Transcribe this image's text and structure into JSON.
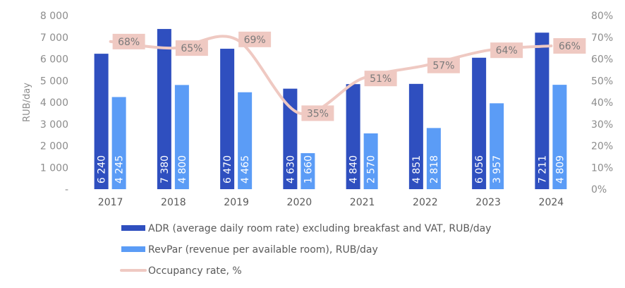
{
  "chart_data": {
    "type": "bar",
    "categories": [
      "2017",
      "2018",
      "2019",
      "2020",
      "2021",
      "2022",
      "2023",
      "2024"
    ],
    "series": [
      {
        "name": "ADR (average daily room rate) excluding breakfast and VAT, RUB/day",
        "values": [
          6240,
          7380,
          6470,
          4630,
          4840,
          4851,
          6056,
          7211
        ],
        "labels": [
          "6 240",
          "7 380",
          "6 470",
          "4 630",
          "4 840",
          "4 851",
          "6 056",
          "7 211"
        ],
        "color": "#2f4fbf",
        "axis": "left"
      },
      {
        "name": "RevPar (revenue per available room), RUB/day",
        "values": [
          4245,
          4800,
          4465,
          1660,
          2570,
          2818,
          3957,
          4809
        ],
        "labels": [
          "4 245",
          "4 800",
          "4 465",
          "1 660",
          "2 570",
          "2 818",
          "3 957",
          "4 809"
        ],
        "color": "#5b9cf6",
        "axis": "left"
      },
      {
        "name": "Occupancy rate, %",
        "type": "line",
        "values": [
          68,
          65,
          69,
          35,
          51,
          57,
          64,
          66
        ],
        "labels": [
          "68%",
          "65%",
          "69%",
          "35%",
          "51%",
          "57%",
          "64%",
          "66%"
        ],
        "color": "#efc9c2",
        "axis": "right"
      }
    ],
    "ylabel": "RUB/day",
    "ylim": [
      0,
      8000
    ],
    "y_ticks": [
      "-",
      "1 000",
      "2 000",
      "3 000",
      "4 000",
      "5 000",
      "6 000",
      "7 000",
      "8 000"
    ],
    "y2lim": [
      0,
      80
    ],
    "y2_ticks": [
      "0%",
      "10%",
      "20%",
      "30%",
      "40%",
      "50%",
      "60%",
      "70%",
      "80%"
    ],
    "grid": false,
    "legend_position": "bottom"
  }
}
